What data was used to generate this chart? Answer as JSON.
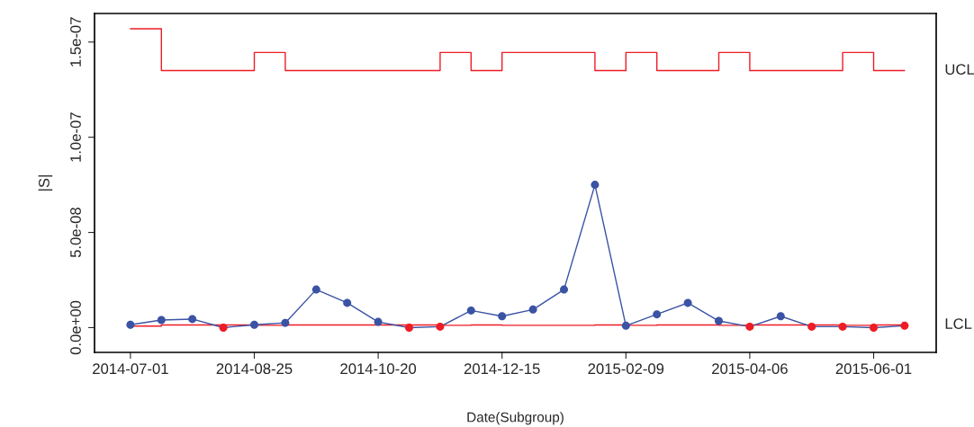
{
  "chart_data": {
    "type": "line",
    "xlabel": "Date(Subgroup)",
    "ylabel": "|S|",
    "categories": [
      "2014-07-01",
      null,
      null,
      null,
      "2014-08-25",
      null,
      null,
      null,
      "2014-10-20",
      null,
      null,
      null,
      "2014-12-15",
      null,
      null,
      null,
      "2015-02-09",
      null,
      null,
      null,
      "2015-04-06",
      null,
      null,
      null,
      "2015-06-01",
      null
    ],
    "series": [
      {
        "color": "#3a53a4",
        "marker": "circle",
        "values": [
          1.5e-09,
          4e-09,
          4.5e-09,
          0,
          1.5e-09,
          2.5e-09,
          2e-08,
          1.3e-08,
          3e-09,
          0,
          5e-10,
          9e-09,
          6e-09,
          9.5e-09,
          2e-08,
          7.5e-08,
          1e-09,
          7e-09,
          1.3e-08,
          3.5e-09,
          5e-10,
          6e-09,
          5e-10,
          5e-10,
          0,
          1e-09
        ],
        "colors": [
          "#3a53a4",
          "#3a53a4",
          "#3a53a4",
          "#ee1c25",
          "#3a53a4",
          "#3a53a4",
          "#3a53a4",
          "#3a53a4",
          "#3a53a4",
          "#ee1c25",
          "#ee1c25",
          "#3a53a4",
          "#3a53a4",
          "#3a53a4",
          "#3a53a4",
          "#3a53a4",
          "#3a53a4",
          "#3a53a4",
          "#3a53a4",
          "#3a53a4",
          "#ee1c25",
          "#3a53a4",
          "#ee1c25",
          "#ee1c25",
          "#ee1c25",
          "#ee1c25"
        ]
      },
      {
        "type": "step",
        "name": "UCL",
        "color": "#ee1c25",
        "values": [
          1.57e-07,
          1.35e-07,
          1.35e-07,
          1.35e-07,
          1.445e-07,
          1.35e-07,
          1.35e-07,
          1.35e-07,
          1.35e-07,
          1.35e-07,
          1.445e-07,
          1.35e-07,
          1.445e-07,
          1.445e-07,
          1.445e-07,
          1.35e-07,
          1.445e-07,
          1.35e-07,
          1.35e-07,
          1.445e-07,
          1.35e-07,
          1.35e-07,
          1.35e-07,
          1.445e-07,
          1.35e-07,
          1.35e-07
        ]
      },
      {
        "type": "step",
        "name": "LCL",
        "color": "#ee1c25",
        "values": [
          8e-10,
          1.4e-09,
          1.4e-09,
          1.4e-09,
          1.2e-09,
          1.4e-09,
          1.4e-09,
          1.4e-09,
          1.4e-09,
          1.4e-09,
          1.2e-09,
          1.4e-09,
          1.2e-09,
          1.2e-09,
          1.2e-09,
          1.4e-09,
          1.2e-09,
          1.4e-09,
          1.4e-09,
          1.2e-09,
          1.4e-09,
          1.4e-09,
          1.4e-09,
          1.2e-09,
          1.4e-09,
          1.4e-09
        ]
      }
    ],
    "ylim": [
      -1.3e-08,
      1.65e-07
    ],
    "yticks": [
      {
        "value": 0,
        "label": "0.0e+00"
      },
      {
        "value": 5e-08,
        "label": "5.0e-08"
      },
      {
        "value": 1e-07,
        "label": "1.0e-07"
      },
      {
        "value": 1.5e-07,
        "label": "1.5e-07"
      }
    ],
    "grid": false,
    "legend": false
  }
}
